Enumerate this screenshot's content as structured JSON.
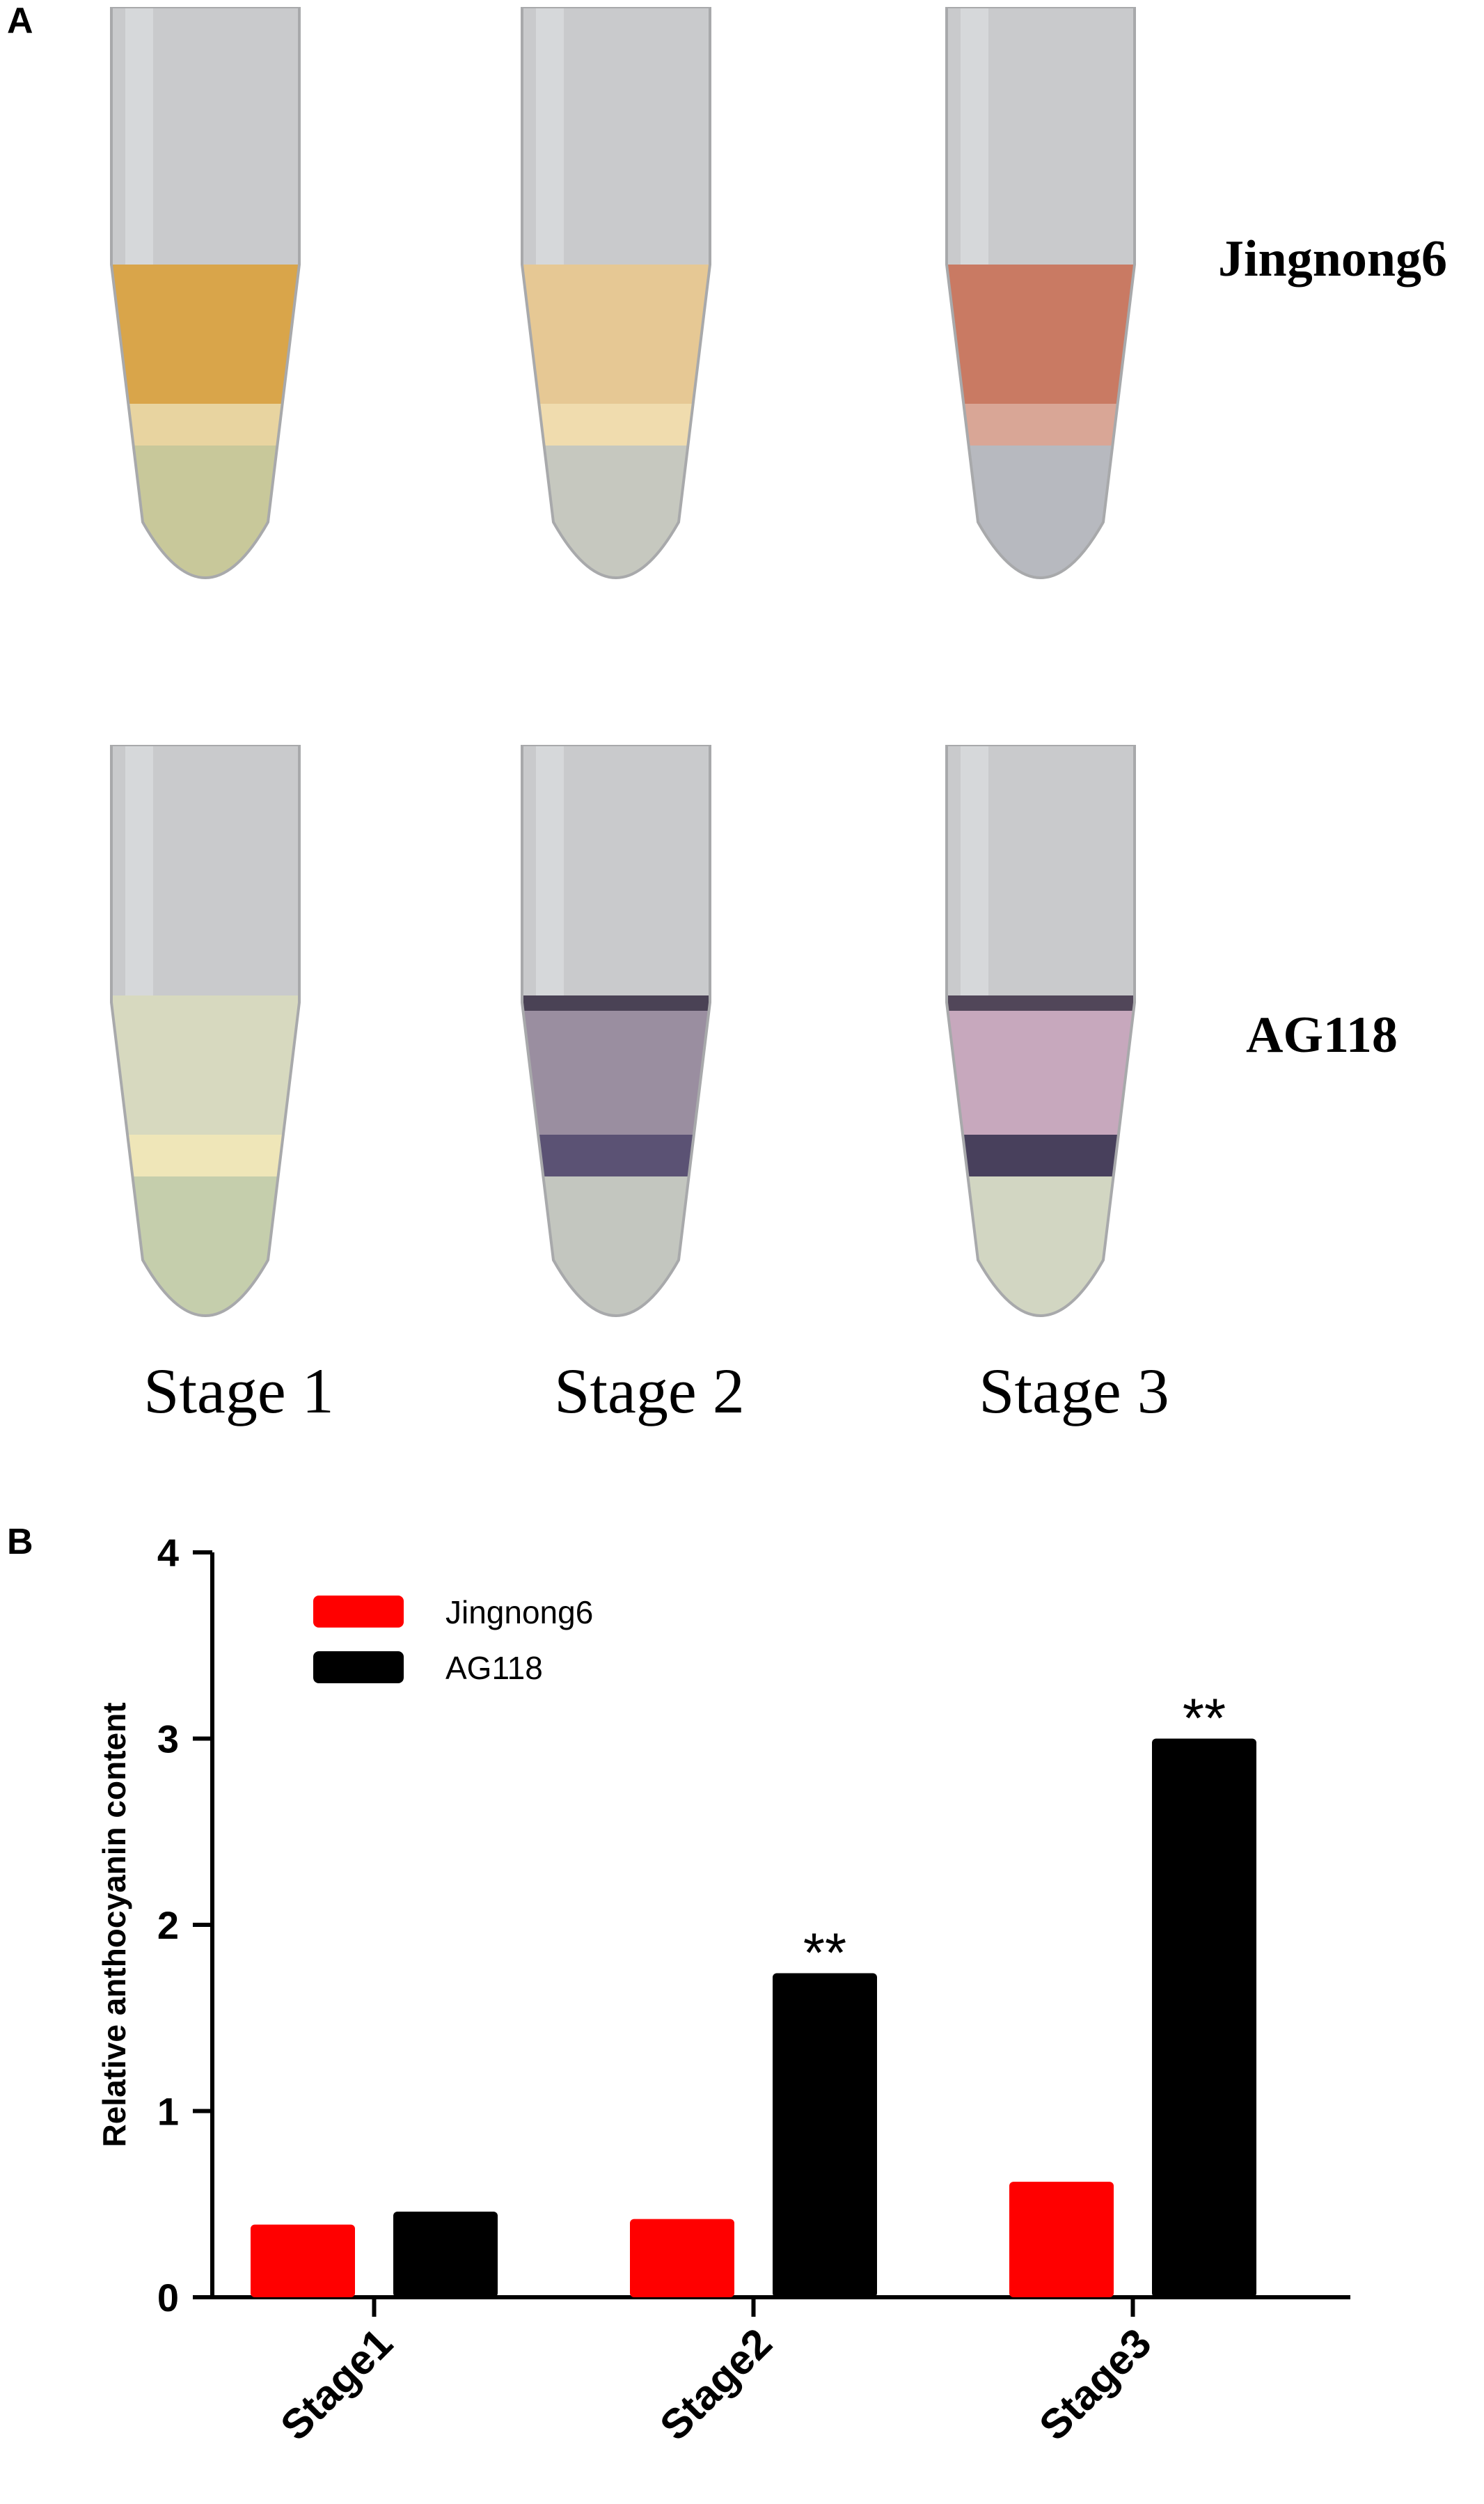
{
  "panel_a": {
    "label": "A",
    "row_labels": [
      "Jingnong6",
      "AG118"
    ],
    "stage_labels": [
      "Stage 1",
      "Stage 2",
      "Stage 3"
    ],
    "tubes": [
      {
        "row": 0,
        "col": 0,
        "liquid_color": "#d9a54a",
        "band_color": "#e8d4a0",
        "tip_color": "#c8c89a",
        "dark_band": false
      },
      {
        "row": 0,
        "col": 1,
        "liquid_color": "#e6c894",
        "band_color": "#f0dcae",
        "tip_color": "#c6c8bf",
        "dark_band": false
      },
      {
        "row": 0,
        "col": 2,
        "liquid_color": "#c97a63",
        "band_color": "#d9a696",
        "tip_color": "#b7b9bf",
        "dark_band": false
      },
      {
        "row": 1,
        "col": 0,
        "liquid_color": "#d7d9bf",
        "band_color": "#efe6b8",
        "tip_color": "#c5ceac",
        "dark_band": false
      },
      {
        "row": 1,
        "col": 1,
        "liquid_color": "#9a8ea0",
        "band_color": "#5b5274",
        "tip_color": "#c3c6bf",
        "dark_band": true
      },
      {
        "row": 1,
        "col": 2,
        "liquid_color": "#c7a8bd",
        "band_color": "#48405c",
        "tip_color": "#d2d6c2",
        "dark_band": true
      }
    ]
  },
  "panel_b": {
    "label": "B"
  },
  "chart_data": {
    "type": "bar",
    "categories": [
      "Stage1",
      "Stage2",
      "Stage3"
    ],
    "series": [
      {
        "name": "Jingnong6",
        "color": "#ff0000",
        "values": [
          0.39,
          0.42,
          0.62
        ]
      },
      {
        "name": "AG118",
        "color": "#000000",
        "values": [
          0.46,
          1.74,
          3.0
        ]
      }
    ],
    "annotations": [
      {
        "category": "Stage2",
        "series": "AG118",
        "text": "**"
      },
      {
        "category": "Stage3",
        "series": "AG118",
        "text": "**"
      }
    ],
    "ylabel": "Relative anthocyanin content",
    "xlabel": "",
    "ylim": [
      0,
      4
    ],
    "yticks": [
      "0",
      "1",
      "2",
      "3",
      "4"
    ],
    "legend_position": "top-left",
    "grid": false
  }
}
